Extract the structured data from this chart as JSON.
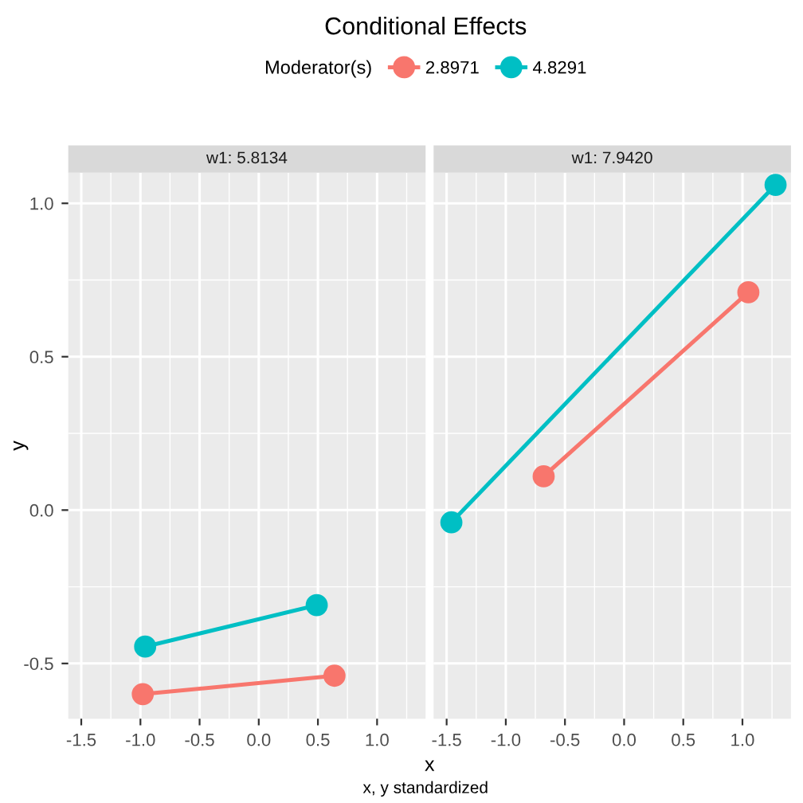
{
  "chart_data": [
    {
      "type": "line",
      "title": "w1: 5.8134",
      "xlabel": "x",
      "ylabel": "y",
      "legend_title": "Moderator(s)",
      "legend": "top",
      "annotations": [
        "Conditional Effects",
        "x, y standardized"
      ],
      "marker": "circle",
      "line_style": "solid",
      "grid": true,
      "xlim": [
        -1.61,
        1.41
      ],
      "ylim": [
        -0.68,
        1.1
      ],
      "xticks": [
        -1.5,
        {
          "value": -1.0,
          "label": "-1.0"
        },
        -0.5,
        {
          "value": 0.0,
          "label": "0.0"
        },
        0.5,
        {
          "value": 1.0,
          "label": "1.0"
        }
      ],
      "yticks": [
        -0.5,
        {
          "value": 0.0,
          "label": "0.0"
        },
        0.5,
        {
          "value": 1.0,
          "label": "1.0"
        }
      ],
      "series": [
        {
          "name": "2.8971",
          "color": "#f8766d",
          "x": [
            -0.98,
            0.64
          ],
          "values": [
            -0.6,
            -0.54
          ]
        },
        {
          "name": "4.8291",
          "color": "#00bfc4",
          "x": [
            -0.96,
            0.49
          ],
          "values": [
            -0.445,
            -0.31
          ]
        }
      ]
    },
    {
      "type": "line",
      "title": "w1: 7.9420",
      "marker": "circle",
      "line_style": "solid",
      "grid": true,
      "tick_labels": "x",
      "xlim": [
        -1.61,
        1.41
      ],
      "ylim": [
        -0.68,
        1.1
      ],
      "xticks": [
        -1.5,
        {
          "value": -1.0,
          "label": "-1.0"
        },
        -0.5,
        {
          "value": 0.0,
          "label": "0.0"
        },
        0.5,
        {
          "value": 1.0,
          "label": "1.0"
        }
      ],
      "yticks": [
        -0.5,
        0.0,
        0.5,
        1.0
      ],
      "series": [
        {
          "name": "2.8971",
          "color": "#f8766d",
          "x": [
            -0.68,
            1.05
          ],
          "values": [
            0.11,
            0.71
          ]
        },
        {
          "name": "4.8291",
          "color": "#00bfc4",
          "x": [
            -1.46,
            1.28
          ],
          "values": [
            -0.04,
            1.06
          ]
        }
      ]
    }
  ]
}
